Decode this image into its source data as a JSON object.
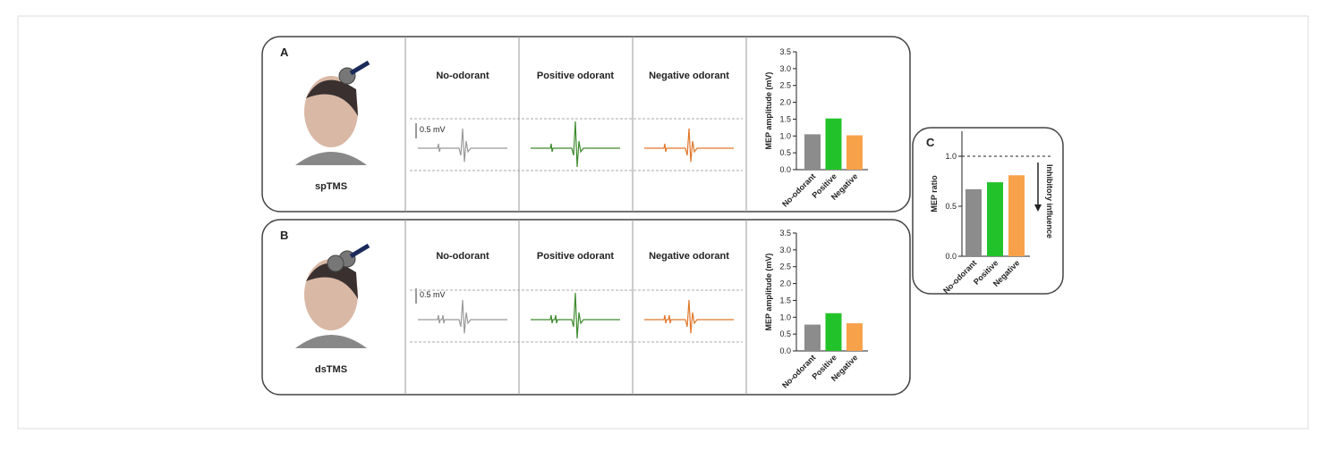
{
  "panels": [
    {
      "label": "A",
      "method": "spTMS",
      "conditions": [
        "No-odorant",
        "Positive odorant",
        "Negative odorant"
      ],
      "scale": "0.5 mV"
    },
    {
      "label": "B",
      "method": "dsTMS",
      "conditions": [
        "No-odorant",
        "Positive odorant",
        "Negative odorant"
      ],
      "scale": "0.5 mV"
    },
    {
      "label": "C"
    }
  ],
  "chart_data": [
    {
      "type": "bar",
      "ylabel": "MEP amplitude (mV)",
      "categories": [
        "No-odorant",
        "Positive",
        "Negative"
      ],
      "values": [
        1.05,
        1.52,
        1.02
      ],
      "colors": [
        "#8c8c8c",
        "#22c32a",
        "#f7a24b"
      ],
      "ylim": [
        0,
        3.5
      ],
      "yticks": [
        {
          "value": 0,
          "label": "0.0"
        },
        0.5,
        {
          "value": 1,
          "label": "1.0"
        },
        1.5,
        {
          "value": 2,
          "label": "2.0"
        },
        2.5,
        {
          "value": 3,
          "label": "3.0"
        },
        3.5
      ]
    },
    {
      "type": "bar",
      "ylabel": "MEP amplitude (mV)",
      "categories": [
        "No-odorant",
        "Positive",
        "Negative"
      ],
      "values": [
        0.78,
        1.12,
        0.82
      ],
      "colors": [
        "#8c8c8c",
        "#22c32a",
        "#f7a24b"
      ],
      "ylim": [
        0,
        3.5
      ],
      "yticks": [
        {
          "value": 0,
          "label": "0.0"
        },
        0.5,
        {
          "value": 1,
          "label": "1.0"
        },
        1.5,
        {
          "value": 2,
          "label": "2.0"
        },
        2.5,
        {
          "value": 3,
          "label": "3.0"
        },
        3.5
      ]
    },
    {
      "type": "bar",
      "ylabel": "MEP ratio",
      "categories": [
        "No-odorant",
        "Positive",
        "Negative"
      ],
      "values": [
        0.67,
        0.74,
        0.81
      ],
      "colors": [
        "#8c8c8c",
        "#22c32a",
        "#f7a24b"
      ],
      "ylim": [
        0,
        1.25
      ],
      "yticks": [
        {
          "value": 0,
          "label": "0.0"
        },
        0.5,
        {
          "value": 1,
          "label": "1.0"
        }
      ],
      "reference_line": 1,
      "annotation": "Inhibitory influence"
    }
  ]
}
